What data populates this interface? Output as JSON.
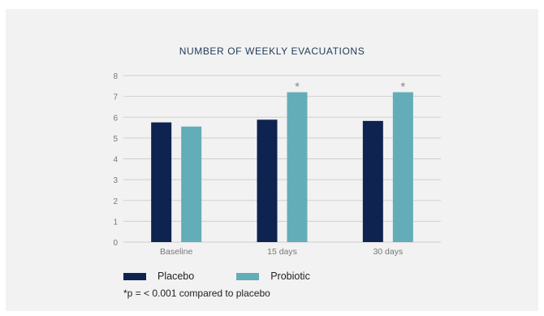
{
  "chart_data": {
    "type": "bar",
    "title": "NUMBER OF WEEKLY EVACUATIONS",
    "categories": [
      "Baseline",
      "15 days",
      "30 days"
    ],
    "series": [
      {
        "name": "Placebo",
        "color": "#0e2350",
        "values": [
          5.75,
          5.88,
          5.82
        ]
      },
      {
        "name": "Probiotic",
        "color": "#63adb8",
        "values": [
          5.55,
          7.2,
          7.2
        ]
      }
    ],
    "significance_marks": [
      {
        "category": "15 days",
        "series": "Probiotic",
        "label": "*"
      },
      {
        "category": "30 days",
        "series": "Probiotic",
        "label": "*"
      }
    ],
    "ylim": [
      0,
      8
    ],
    "yticks": [
      0,
      1,
      2,
      3,
      4,
      5,
      6,
      7,
      8
    ],
    "grid": true,
    "legend_position": "bottom-left",
    "footnote": "*p = < 0.001 compared to placebo"
  }
}
